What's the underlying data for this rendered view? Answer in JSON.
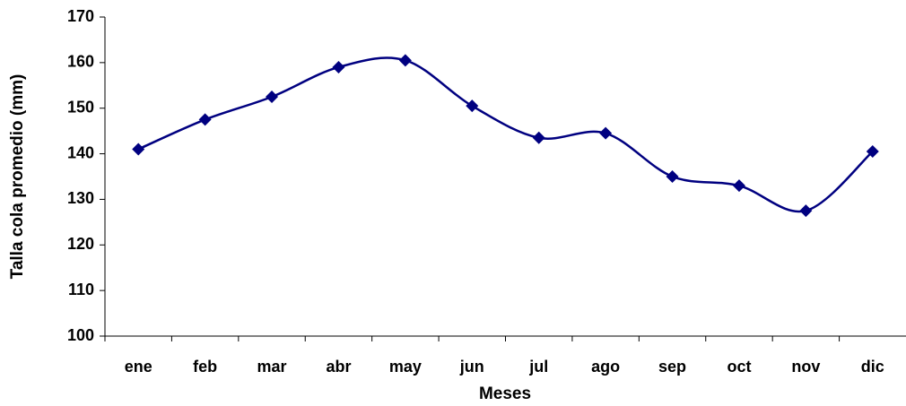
{
  "chart_data": {
    "type": "line",
    "x_label": "Meses",
    "y_label": "Talla cola promedio (mm)",
    "categories": [
      "ene",
      "feb",
      "mar",
      "abr",
      "may",
      "jun",
      "jul",
      "ago",
      "sep",
      "oct",
      "nov",
      "dic"
    ],
    "series": [
      {
        "color": "#000080",
        "smooth": true,
        "marker": "diamond",
        "values": [
          141,
          147.5,
          152.5,
          159,
          160.5,
          150.5,
          143.5,
          144.5,
          135,
          133,
          127.5,
          140.5
        ]
      }
    ],
    "ylim": [
      100,
      170
    ],
    "yticks": [
      100,
      110,
      120,
      130,
      140,
      150,
      160,
      170
    ],
    "grid": false
  }
}
